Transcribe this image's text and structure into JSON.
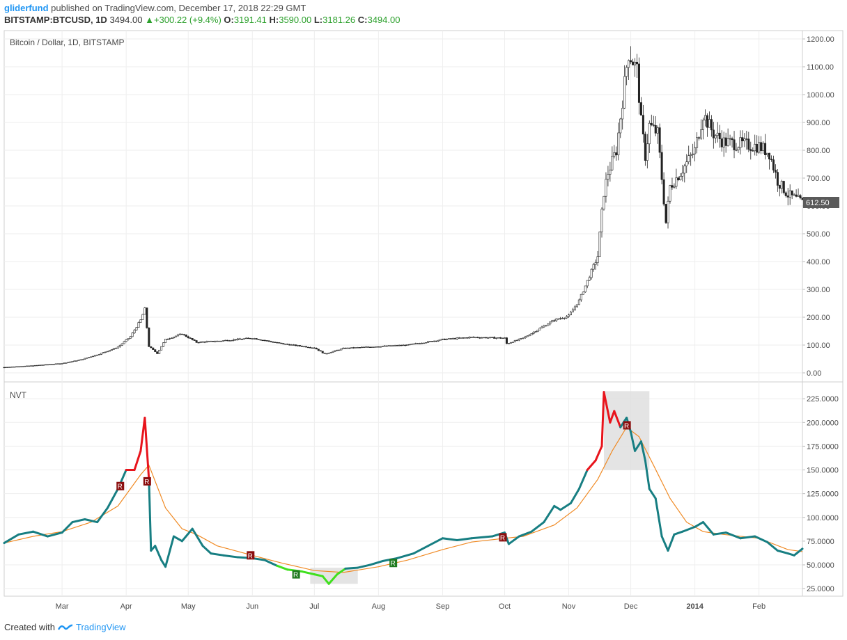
{
  "header": {
    "user": "gliderfund",
    "published": "published on TradingView.com, December 17, 2018 22:29 GMT",
    "symbol": "BITSTAMP:BTCUSD, 1D",
    "last": "3494.00",
    "change": "+300.22 (+9.4%)",
    "o_label": "O:",
    "o": "3191.41",
    "h_label": "H:",
    "h": "3590.00",
    "l_label": "L:",
    "l": "3181.26",
    "c_label": "C:",
    "c": "3494.00"
  },
  "footer": {
    "created": "Created with",
    "brand": "TradingView"
  },
  "colors": {
    "candle": "#222222",
    "nvt_neutral": "#177e82",
    "nvt_high": "#e8141c",
    "nvt_low": "#40e01e",
    "ma": "#f08a24",
    "grid": "#eeeeee",
    "zone": "#dddddd",
    "badge_r": "#8b0e0e",
    "badge_g": "#1f7a1f"
  },
  "chart_data": [
    {
      "type": "candlestick",
      "title": "Bitcoin / Dollar, 1D, BITSTAMP",
      "last_price_label": "612.50",
      "ylim": [
        -30,
        1230
      ],
      "y_ticks": [
        "0.00",
        "100.00",
        "200.00",
        "300.00",
        "400.00",
        "500.00",
        "600.00",
        "700.00",
        "800.00",
        "900.00",
        "1000.00",
        "1100.00",
        "1200.00"
      ],
      "x_ticks": [
        "Mar",
        "Apr",
        "May",
        "Jun",
        "Jul",
        "Aug",
        "Sep",
        "Oct",
        "Nov",
        "Dec",
        "2014",
        "Feb"
      ],
      "x_tick_dates": [
        "2013-03-01",
        "2013-04-01",
        "2013-05-01",
        "2013-06-01",
        "2013-07-01",
        "2013-08-01",
        "2013-09-01",
        "2013-10-01",
        "2013-11-01",
        "2013-12-01",
        "2014-01-01",
        "2014-02-01"
      ],
      "x_range": [
        "2013-02-01",
        "2014-02-22"
      ],
      "close_series": [
        [
          "2013-02-01",
          20
        ],
        [
          "2013-02-15",
          26
        ],
        [
          "2013-03-01",
          34
        ],
        [
          "2013-03-10",
          47
        ],
        [
          "2013-03-20",
          70
        ],
        [
          "2013-03-28",
          93
        ],
        [
          "2013-04-03",
          130
        ],
        [
          "2013-04-08",
          190
        ],
        [
          "2013-04-10",
          230
        ],
        [
          "2013-04-12",
          95
        ],
        [
          "2013-04-16",
          70
        ],
        [
          "2013-04-20",
          120
        ],
        [
          "2013-04-28",
          140
        ],
        [
          "2013-05-05",
          110
        ],
        [
          "2013-05-15",
          114
        ],
        [
          "2013-06-01",
          125
        ],
        [
          "2013-06-15",
          105
        ],
        [
          "2013-07-01",
          90
        ],
        [
          "2013-07-06",
          68
        ],
        [
          "2013-07-15",
          88
        ],
        [
          "2013-08-01",
          95
        ],
        [
          "2013-08-15",
          100
        ],
        [
          "2013-09-01",
          120
        ],
        [
          "2013-09-15",
          128
        ],
        [
          "2013-10-01",
          125
        ],
        [
          "2013-10-02",
          105
        ],
        [
          "2013-10-10",
          125
        ],
        [
          "2013-10-25",
          190
        ],
        [
          "2013-11-01",
          205
        ],
        [
          "2013-11-06",
          260
        ],
        [
          "2013-11-10",
          330
        ],
        [
          "2013-11-15",
          420
        ],
        [
          "2013-11-18",
          650
        ],
        [
          "2013-11-20",
          720
        ],
        [
          "2013-11-24",
          800
        ],
        [
          "2013-11-29",
          1100
        ],
        [
          "2013-11-30",
          1150
        ],
        [
          "2013-12-04",
          1090
        ],
        [
          "2013-12-06",
          900
        ],
        [
          "2013-12-08",
          780
        ],
        [
          "2013-12-10",
          890
        ],
        [
          "2013-12-14",
          860
        ],
        [
          "2013-12-18",
          540
        ],
        [
          "2013-12-20",
          670
        ],
        [
          "2013-12-25",
          720
        ],
        [
          "2014-01-01",
          800
        ],
        [
          "2014-01-05",
          930
        ],
        [
          "2014-01-10",
          860
        ],
        [
          "2014-01-15",
          830
        ],
        [
          "2014-01-25",
          820
        ],
        [
          "2014-02-01",
          815
        ],
        [
          "2014-02-06",
          790
        ],
        [
          "2014-02-10",
          690
        ],
        [
          "2014-02-15",
          640
        ],
        [
          "2014-02-22",
          612
        ]
      ]
    },
    {
      "type": "line",
      "title": "NVT",
      "ylim": [
        17,
        242
      ],
      "y_ticks": [
        "25.0000",
        "50.0000",
        "75.0000",
        "100.0000",
        "125.0000",
        "150.0000",
        "175.0000",
        "200.0000",
        "225.0000"
      ],
      "zones": [
        {
          "from": "2013-06-29",
          "to": "2013-07-22",
          "y": [
            30,
            47
          ]
        },
        {
          "from": "2013-11-18",
          "to": "2013-12-10",
          "y": [
            150,
            233
          ]
        }
      ],
      "nvt_series": [
        [
          "2013-02-01",
          73
        ],
        [
          "2013-02-08",
          82
        ],
        [
          "2013-02-15",
          85
        ],
        [
          "2013-02-22",
          80
        ],
        [
          "2013-03-01",
          84
        ],
        [
          "2013-03-06",
          95
        ],
        [
          "2013-03-12",
          98
        ],
        [
          "2013-03-18",
          95
        ],
        [
          "2013-03-23",
          110
        ],
        [
          "2013-03-28",
          130
        ],
        [
          "2013-04-01",
          150
        ],
        [
          "2013-04-05",
          150
        ],
        [
          "2013-04-08",
          170
        ],
        [
          "2013-04-10",
          205
        ],
        [
          "2013-04-12",
          140
        ],
        [
          "2013-04-13",
          65
        ],
        [
          "2013-04-15",
          70
        ],
        [
          "2013-04-18",
          55
        ],
        [
          "2013-04-20",
          48
        ],
        [
          "2013-04-24",
          80
        ],
        [
          "2013-04-28",
          75
        ],
        [
          "2013-05-03",
          88
        ],
        [
          "2013-05-08",
          70
        ],
        [
          "2013-05-12",
          62
        ],
        [
          "2013-05-18",
          60
        ],
        [
          "2013-05-25",
          58
        ],
        [
          "2013-06-01",
          57
        ],
        [
          "2013-06-07",
          55
        ],
        [
          "2013-06-13",
          49
        ],
        [
          "2013-06-18",
          45
        ],
        [
          "2013-06-25",
          43
        ],
        [
          "2013-07-01",
          40
        ],
        [
          "2013-07-05",
          38
        ],
        [
          "2013-07-08",
          30
        ],
        [
          "2013-07-12",
          40
        ],
        [
          "2013-07-16",
          46
        ],
        [
          "2013-07-22",
          47
        ],
        [
          "2013-07-28",
          50
        ],
        [
          "2013-08-03",
          54
        ],
        [
          "2013-08-10",
          57
        ],
        [
          "2013-08-18",
          62
        ],
        [
          "2013-08-25",
          70
        ],
        [
          "2013-09-01",
          78
        ],
        [
          "2013-09-08",
          76
        ],
        [
          "2013-09-15",
          78
        ],
        [
          "2013-09-25",
          80
        ],
        [
          "2013-10-01",
          84
        ],
        [
          "2013-10-03",
          72
        ],
        [
          "2013-10-08",
          80
        ],
        [
          "2013-10-14",
          85
        ],
        [
          "2013-10-20",
          95
        ],
        [
          "2013-10-25",
          112
        ],
        [
          "2013-10-28",
          108
        ],
        [
          "2013-11-02",
          115
        ],
        [
          "2013-11-06",
          130
        ],
        [
          "2013-11-10",
          150
        ],
        [
          "2013-11-14",
          160
        ],
        [
          "2013-11-17",
          175
        ],
        [
          "2013-11-18",
          232
        ],
        [
          "2013-11-21",
          200
        ],
        [
          "2013-11-23",
          212
        ],
        [
          "2013-11-26",
          195
        ],
        [
          "2013-11-29",
          205
        ],
        [
          "2013-12-01",
          190
        ],
        [
          "2013-12-03",
          170
        ],
        [
          "2013-12-06",
          180
        ],
        [
          "2013-12-08",
          160
        ],
        [
          "2013-12-10",
          130
        ],
        [
          "2013-12-13",
          120
        ],
        [
          "2013-12-16",
          80
        ],
        [
          "2013-12-19",
          65
        ],
        [
          "2013-12-22",
          82
        ],
        [
          "2013-12-26",
          85
        ],
        [
          "2014-01-01",
          90
        ],
        [
          "2014-01-05",
          95
        ],
        [
          "2014-01-10",
          82
        ],
        [
          "2014-01-16",
          84
        ],
        [
          "2014-01-23",
          78
        ],
        [
          "2014-01-30",
          80
        ],
        [
          "2014-02-05",
          74
        ],
        [
          "2014-02-10",
          65
        ],
        [
          "2014-02-15",
          62
        ],
        [
          "2014-02-18",
          60
        ],
        [
          "2014-02-22",
          67
        ]
      ],
      "ma_series": [
        [
          "2013-02-01",
          73
        ],
        [
          "2013-02-15",
          80
        ],
        [
          "2013-03-01",
          85
        ],
        [
          "2013-03-15",
          95
        ],
        [
          "2013-03-28",
          112
        ],
        [
          "2013-04-08",
          145
        ],
        [
          "2013-04-12",
          155
        ],
        [
          "2013-04-20",
          110
        ],
        [
          "2013-04-28",
          88
        ],
        [
          "2013-05-05",
          82
        ],
        [
          "2013-05-15",
          70
        ],
        [
          "2013-06-01",
          60
        ],
        [
          "2013-06-15",
          52
        ],
        [
          "2013-07-01",
          44
        ],
        [
          "2013-07-15",
          42
        ],
        [
          "2013-08-01",
          48
        ],
        [
          "2013-08-15",
          55
        ],
        [
          "2013-09-01",
          66
        ],
        [
          "2013-09-15",
          74
        ],
        [
          "2013-10-01",
          78
        ],
        [
          "2013-10-10",
          80
        ],
        [
          "2013-10-25",
          92
        ],
        [
          "2013-11-05",
          110
        ],
        [
          "2013-11-15",
          140
        ],
        [
          "2013-11-22",
          170
        ],
        [
          "2013-11-29",
          195
        ],
        [
          "2013-12-05",
          185
        ],
        [
          "2013-12-12",
          155
        ],
        [
          "2013-12-20",
          120
        ],
        [
          "2013-12-28",
          95
        ],
        [
          "2014-01-05",
          85
        ],
        [
          "2014-01-15",
          82
        ],
        [
          "2014-02-01",
          78
        ],
        [
          "2014-02-15",
          66
        ],
        [
          "2014-02-22",
          64
        ]
      ],
      "signals": [
        {
          "date": "2013-03-29",
          "y": 133,
          "label": "R",
          "kind": "r"
        },
        {
          "date": "2013-04-11",
          "y": 138,
          "label": "R",
          "kind": "r"
        },
        {
          "date": "2013-05-31",
          "y": 60,
          "label": "R",
          "kind": "r"
        },
        {
          "date": "2013-06-22",
          "y": 40,
          "label": "R",
          "kind": "g"
        },
        {
          "date": "2013-08-08",
          "y": 52,
          "label": "R",
          "kind": "g"
        },
        {
          "date": "2013-09-30",
          "y": 79,
          "label": "R",
          "kind": "r"
        },
        {
          "date": "2013-11-29",
          "y": 197,
          "label": "R",
          "kind": "r"
        }
      ]
    }
  ]
}
